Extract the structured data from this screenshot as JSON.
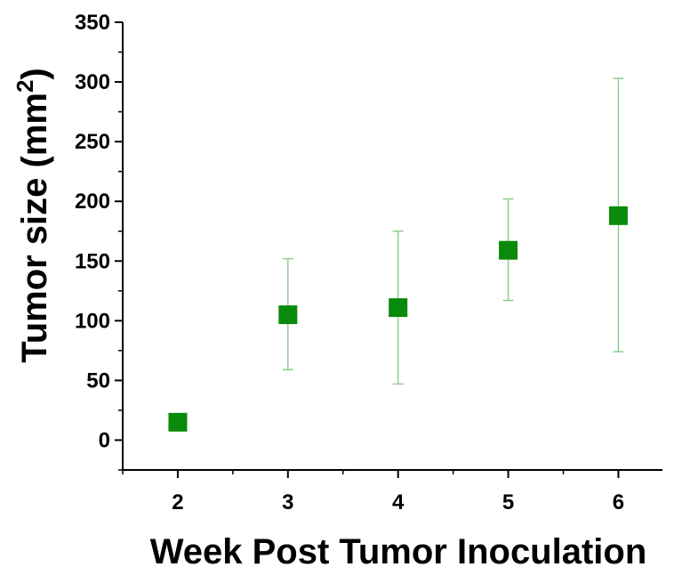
{
  "chart_data": {
    "type": "scatter",
    "xlabel": "Week Post Tumor Inoculation",
    "ylabel": "Tumor size (mm",
    "ylabel_superscript": "2",
    "ylabel_suffix": ")",
    "xlim": [
      1.5,
      6.4
    ],
    "ylim": [
      -25,
      350
    ],
    "xticks": [
      2,
      3,
      4,
      5,
      6
    ],
    "yticks": [
      0,
      50,
      100,
      150,
      200,
      250,
      300,
      350
    ],
    "marker": "square",
    "color": "#0a8a0a",
    "errorbar_color": "#8fce8f",
    "points": [
      {
        "x": 2,
        "y": 15,
        "err_low": 15,
        "err_high": 15
      },
      {
        "x": 3,
        "y": 105,
        "err_low": 59,
        "err_high": 152
      },
      {
        "x": 4,
        "y": 111,
        "err_low": 47,
        "err_high": 175
      },
      {
        "x": 5,
        "y": 159,
        "err_low": 117,
        "err_high": 202
      },
      {
        "x": 6,
        "y": 188,
        "err_low": 74,
        "err_high": 303
      }
    ]
  }
}
